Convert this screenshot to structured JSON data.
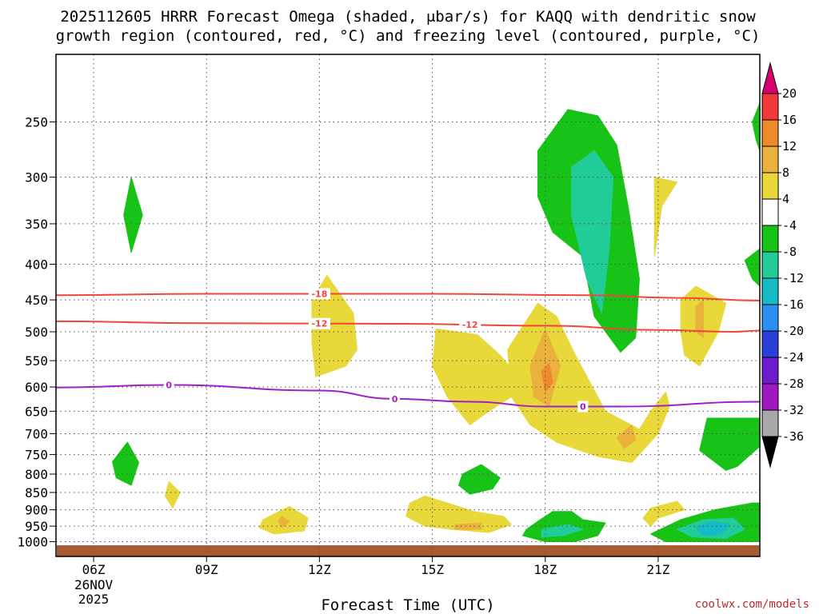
{
  "chart_data": {
    "type": "contour",
    "title_line1": "2025112605 HRRR Forecast Omega (shaded, μbar/s) for KAQQ with dendritic snow",
    "title_line2": "growth region (contoured, red, °C) and freezing level (contoured, purple, °C)",
    "xlabel": "Forecast Time (UTC)",
    "ylabel": "",
    "credit": "coolwx.com/models",
    "x_hours_range": [
      5,
      23.7
    ],
    "x_ticks": [
      {
        "hour": 6,
        "label": "06Z",
        "sub1": "26NOV",
        "sub2": "2025"
      },
      {
        "hour": 9,
        "label": "09Z"
      },
      {
        "hour": 12,
        "label": "12Z"
      },
      {
        "hour": 15,
        "label": "15Z"
      },
      {
        "hour": 18,
        "label": "18Z"
      },
      {
        "hour": 21,
        "label": "21Z"
      }
    ],
    "y_scale": "log-pressure",
    "y_range_hpa": [
      200,
      1050
    ],
    "y_ticks": [
      "250",
      "300",
      "350",
      "400",
      "450",
      "500",
      "550",
      "600",
      "650",
      "700",
      "750",
      "800",
      "850",
      "900",
      "950",
      "1000"
    ],
    "grid": true,
    "colorbar": {
      "unit": "μbar/s",
      "levels": [
        "20",
        "16",
        "12",
        "8",
        "4",
        "-4",
        "-8",
        "-12",
        "-16",
        "-20",
        "-24",
        "-28",
        "-32",
        "-36"
      ],
      "colors": [
        "#d8006f",
        "#f03a3a",
        "#ee8a2a",
        "#eab23c",
        "#e8d83a",
        "#ffffff",
        "#16c316",
        "#22cc99",
        "#15bcc6",
        "#2a8ff0",
        "#2840d8",
        "#6c1ccc",
        "#a018c0",
        "#a8a8a8",
        "#000000"
      ]
    },
    "lines": [
      {
        "value": "-18",
        "color": "#f0463c",
        "points": [
          [
            5,
            443
          ],
          [
            9,
            441
          ],
          [
            15,
            441
          ],
          [
            19,
            443
          ],
          [
            21.5,
            447
          ],
          [
            23.7,
            451
          ]
        ],
        "label_hours": [
          12
        ]
      },
      {
        "value": "-12",
        "color": "#f0463c",
        "points": [
          [
            5,
            483
          ],
          [
            9,
            486
          ],
          [
            14,
            487
          ],
          [
            18,
            490
          ],
          [
            21,
            497
          ],
          [
            23,
            500
          ],
          [
            23.7,
            498
          ]
        ],
        "label_hours": [
          12,
          16
        ]
      },
      {
        "value": "0",
        "color": "#a020c8",
        "points": [
          [
            5,
            601
          ],
          [
            8,
            596
          ],
          [
            12,
            607
          ],
          [
            14,
            624
          ],
          [
            16,
            630
          ],
          [
            18,
            640
          ],
          [
            20,
            640
          ],
          [
            23.7,
            630
          ]
        ],
        "label_hours": [
          8,
          14,
          19
        ]
      }
    ],
    "shaded_regions": [
      {
        "bin": "-8 to -4",
        "color": "#16c316",
        "points": [
          [
            7,
            300
          ],
          [
            7.3,
            340
          ],
          [
            7,
            385
          ],
          [
            6.8,
            340
          ]
        ]
      },
      {
        "bin": "-8 to -4",
        "color": "#16c316",
        "points": [
          [
            6.5,
            768
          ],
          [
            6.9,
            720
          ],
          [
            7.2,
            770
          ],
          [
            7,
            830
          ],
          [
            6.6,
            810
          ]
        ]
      },
      {
        "bin": "4 to 8",
        "color": "#e8d83a",
        "points": [
          [
            8.0,
            820
          ],
          [
            8.3,
            850
          ],
          [
            8.1,
            895
          ],
          [
            7.9,
            860
          ]
        ]
      },
      {
        "bin": "4 to 8",
        "color": "#e8d83a",
        "points": [
          [
            10.5,
            930
          ],
          [
            11.2,
            890
          ],
          [
            11.7,
            925
          ],
          [
            11.6,
            965
          ],
          [
            10.8,
            975
          ],
          [
            10.4,
            955
          ]
        ]
      },
      {
        "bin": "8 to 12",
        "color": "#eab23c",
        "points": [
          [
            11.0,
            920
          ],
          [
            11.2,
            935
          ],
          [
            11.0,
            955
          ],
          [
            10.9,
            935
          ]
        ]
      },
      {
        "bin": "4 to 8",
        "color": "#e8d83a",
        "points": [
          [
            11.8,
            450
          ],
          [
            12.2,
            415
          ],
          [
            12.9,
            470
          ],
          [
            13.0,
            530
          ],
          [
            12.7,
            560
          ],
          [
            11.9,
            580
          ],
          [
            11.8,
            520
          ]
        ]
      },
      {
        "bin": "4 to 8",
        "color": "#e8d83a",
        "points": [
          [
            15.1,
            495
          ],
          [
            16.2,
            505
          ],
          [
            16.8,
            540
          ],
          [
            17.5,
            600
          ],
          [
            16.5,
            650
          ],
          [
            16.0,
            680
          ],
          [
            15.4,
            620
          ],
          [
            15.0,
            560
          ]
        ]
      },
      {
        "bin": "-8 to -4",
        "color": "#16c316",
        "points": [
          [
            15.8,
            800
          ],
          [
            16.3,
            775
          ],
          [
            16.8,
            810
          ],
          [
            16.6,
            840
          ],
          [
            16.0,
            855
          ],
          [
            15.7,
            830
          ]
        ]
      },
      {
        "bin": "4 to 8",
        "color": "#e8d83a",
        "points": [
          [
            14.4,
            880
          ],
          [
            14.8,
            860
          ],
          [
            15.4,
            880
          ],
          [
            16.1,
            905
          ],
          [
            16.9,
            920
          ],
          [
            17.1,
            945
          ],
          [
            16.5,
            970
          ],
          [
            15.5,
            960
          ],
          [
            14.8,
            950
          ],
          [
            14.3,
            920
          ]
        ]
      },
      {
        "bin": "8 to 12",
        "color": "#eab23c",
        "points": [
          [
            15.6,
            945
          ],
          [
            16.3,
            940
          ],
          [
            16.3,
            960
          ],
          [
            15.6,
            960
          ]
        ]
      },
      {
        "bin": "4 to 8",
        "color": "#e8d83a",
        "points": [
          [
            17.0,
            530
          ],
          [
            17.8,
            455
          ],
          [
            18.3,
            475
          ],
          [
            18.8,
            540
          ],
          [
            19.6,
            650
          ],
          [
            20.5,
            690
          ],
          [
            20.8,
            650
          ],
          [
            21.2,
            610
          ],
          [
            21.3,
            640
          ],
          [
            21.0,
            700
          ],
          [
            20.3,
            770
          ],
          [
            19.4,
            755
          ],
          [
            18.3,
            720
          ],
          [
            17.6,
            680
          ],
          [
            17.1,
            620
          ]
        ]
      },
      {
        "bin": "8 to 12",
        "color": "#eab23c",
        "points": [
          [
            17.6,
            560
          ],
          [
            18.0,
            495
          ],
          [
            18.4,
            560
          ],
          [
            18.1,
            640
          ],
          [
            17.7,
            620
          ]
        ]
      },
      {
        "bin": "12 to 16",
        "color": "#ee8a2a",
        "points": [
          [
            17.9,
            570
          ],
          [
            18.1,
            555
          ],
          [
            18.2,
            590
          ],
          [
            18.0,
            610
          ]
        ]
      },
      {
        "bin": "8 to 12",
        "color": "#eab23c",
        "points": [
          [
            19.9,
            710
          ],
          [
            20.3,
            680
          ],
          [
            20.4,
            715
          ],
          [
            20.1,
            735
          ]
        ]
      },
      {
        "bin": "-8 to -4",
        "color": "#16c316",
        "points": [
          [
            17.8,
            275
          ],
          [
            18.6,
            240
          ],
          [
            19.4,
            245
          ],
          [
            19.9,
            270
          ],
          [
            20.2,
            330
          ],
          [
            20.5,
            420
          ],
          [
            20.4,
            510
          ],
          [
            20.0,
            535
          ],
          [
            19.3,
            475
          ],
          [
            19.0,
            390
          ],
          [
            18.2,
            360
          ],
          [
            17.8,
            320
          ]
        ]
      },
      {
        "bin": "-12 to -8",
        "color": "#22cc99",
        "points": [
          [
            18.7,
            290
          ],
          [
            19.3,
            275
          ],
          [
            19.8,
            300
          ],
          [
            19.7,
            380
          ],
          [
            19.5,
            470
          ],
          [
            19.1,
            420
          ],
          [
            18.7,
            340
          ]
        ]
      },
      {
        "bin": "4 to 8",
        "color": "#e8d83a",
        "points": [
          [
            20.9,
            300
          ],
          [
            21.5,
            305
          ],
          [
            21.1,
            330
          ],
          [
            20.9,
            390
          ]
        ]
      },
      {
        "bin": "4 to 8",
        "color": "#e8d83a",
        "points": [
          [
            21.6,
            450
          ],
          [
            22.0,
            430
          ],
          [
            22.8,
            455
          ],
          [
            22.6,
            500
          ],
          [
            22.1,
            560
          ],
          [
            21.7,
            540
          ],
          [
            21.6,
            500
          ]
        ]
      },
      {
        "bin": "8 to 12",
        "color": "#eab23c",
        "points": [
          [
            22.0,
            460
          ],
          [
            22.2,
            450
          ],
          [
            22.2,
            510
          ],
          [
            22.0,
            500
          ]
        ]
      },
      {
        "bin": "4 to 8",
        "color": "#e8d83a",
        "points": [
          [
            20.8,
            895
          ],
          [
            21.5,
            875
          ],
          [
            21.7,
            900
          ],
          [
            21.0,
            925
          ],
          [
            20.8,
            950
          ],
          [
            20.6,
            925
          ]
        ]
      },
      {
        "bin": "-8 to -4",
        "color": "#16c316",
        "points": [
          [
            22.3,
            665
          ],
          [
            23.7,
            665
          ],
          [
            23.7,
            730
          ],
          [
            23.1,
            780
          ],
          [
            22.8,
            790
          ],
          [
            22.1,
            740
          ]
        ]
      },
      {
        "bin": "-8 to -4",
        "color": "#16c316",
        "points": [
          [
            23.5,
            250
          ],
          [
            23.7,
            235
          ],
          [
            23.7,
            275
          ],
          [
            23.6,
            265
          ]
        ]
      },
      {
        "bin": "-8 to -4",
        "color": "#16c316",
        "points": [
          [
            23.3,
            395
          ],
          [
            23.7,
            380
          ],
          [
            23.7,
            430
          ],
          [
            23.5,
            420
          ]
        ]
      },
      {
        "bin": "-8 to -4",
        "color": "#16c316",
        "points": [
          [
            17.5,
            960
          ],
          [
            17.8,
            935
          ],
          [
            18.2,
            905
          ],
          [
            18.7,
            905
          ],
          [
            19.0,
            930
          ],
          [
            19.6,
            940
          ],
          [
            19.4,
            980
          ],
          [
            18.8,
            1000
          ],
          [
            18.0,
            1000
          ],
          [
            17.4,
            980
          ]
        ]
      },
      {
        "bin": "-12 to -8",
        "color": "#22cc99",
        "points": [
          [
            17.9,
            960
          ],
          [
            18.6,
            945
          ],
          [
            19.0,
            960
          ],
          [
            18.5,
            980
          ],
          [
            17.9,
            985
          ]
        ]
      },
      {
        "bin": "-8 to -4",
        "color": "#16c316",
        "points": [
          [
            20.8,
            975
          ],
          [
            21.6,
            930
          ],
          [
            22.5,
            900
          ],
          [
            23.5,
            880
          ],
          [
            23.7,
            880
          ],
          [
            23.7,
            1000
          ],
          [
            22.5,
            1000
          ],
          [
            21.2,
            1000
          ]
        ]
      },
      {
        "bin": "-12 to -8",
        "color": "#22cc99",
        "points": [
          [
            21.5,
            960
          ],
          [
            22.2,
            930
          ],
          [
            23.0,
            925
          ],
          [
            23.3,
            960
          ],
          [
            22.8,
            990
          ],
          [
            21.9,
            985
          ]
        ]
      },
      {
        "bin": "-16 to -12",
        "color": "#15bcc6",
        "points": [
          [
            22.0,
            955
          ],
          [
            22.4,
            935
          ],
          [
            22.9,
            945
          ],
          [
            22.7,
            975
          ],
          [
            22.2,
            980
          ]
        ]
      }
    ],
    "ground": {
      "color": "#a85a32",
      "from_hpa": 1012
    }
  }
}
